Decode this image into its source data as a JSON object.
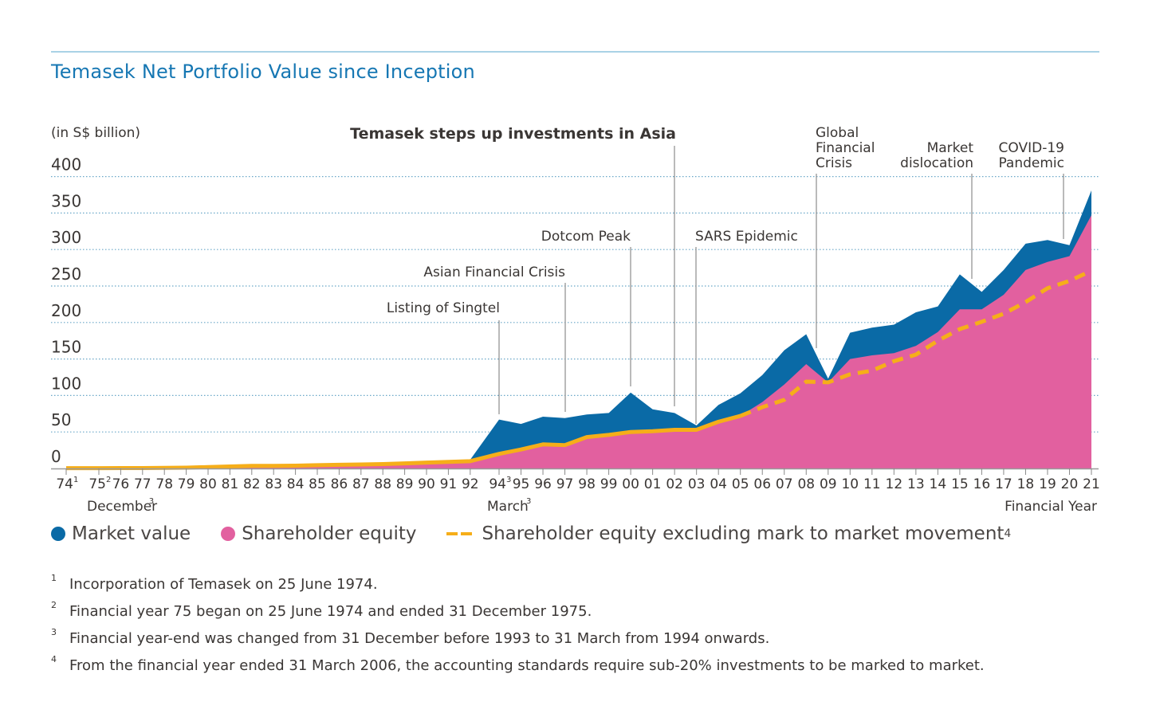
{
  "page": {
    "title": "Temasek Net Portfolio Value since Inception"
  },
  "chart_data": {
    "type": "area",
    "title": "Temasek Net Portfolio Value since Inception",
    "ylabel": "(in S$ billion)",
    "xlabel": "Financial Year",
    "ylim": [
      0,
      400
    ],
    "yticks": [
      "0",
      "50",
      "100",
      "150",
      "200",
      "250",
      "300",
      "350",
      "400"
    ],
    "grid": true,
    "legend_position": "bottom",
    "categories": [
      "74",
      "75",
      "76",
      "77",
      "78",
      "79",
      "80",
      "81",
      "82",
      "83",
      "84",
      "85",
      "86",
      "87",
      "88",
      "89",
      "90",
      "91",
      "92",
      "94",
      "95",
      "96",
      "97",
      "98",
      "99",
      "00",
      "01",
      "02",
      "03",
      "04",
      "05",
      "06",
      "07",
      "08",
      "09",
      "10",
      "11",
      "12",
      "13",
      "14",
      "15",
      "16",
      "17",
      "18",
      "19",
      "20",
      "21"
    ],
    "tick_superscripts": {
      "74": "1",
      "75": "2",
      "94": "3"
    },
    "period_labels": [
      {
        "text": "December",
        "sup": "3",
        "at": "75"
      },
      {
        "text": "March",
        "sup": "3",
        "at": "94"
      }
    ],
    "series": [
      {
        "name": "Market value",
        "color": "#0a6aa6",
        "values": [
          0.35,
          0.4,
          0.5,
          0.6,
          0.8,
          1.1,
          1.9,
          2.7,
          3.6,
          3.5,
          3.8,
          4.5,
          5,
          6.5,
          7,
          9,
          10,
          11,
          12,
          67,
          61,
          71,
          69,
          74,
          76,
          104,
          81,
          76,
          59,
          87,
          103,
          128,
          162,
          184,
          123,
          186,
          193,
          197,
          214,
          222,
          266,
          242,
          272,
          308,
          313,
          306,
          381
        ]
      },
      {
        "name": "Shareholder equity",
        "color": "#e2609f",
        "values": [
          0.35,
          0.4,
          0.5,
          0.6,
          0.8,
          1.1,
          1.9,
          2.7,
          3.6,
          3.5,
          3.8,
          4.5,
          5,
          5.5,
          6,
          7,
          8,
          9,
          10,
          20,
          26,
          33,
          32,
          43,
          46,
          50,
          51,
          53,
          53,
          64,
          72,
          91,
          115,
          143,
          118,
          150,
          155,
          158,
          168,
          187,
          218,
          218,
          238,
          272,
          283,
          291,
          347
        ]
      },
      {
        "name": "Shareholder equity excluding mark to market movement",
        "sup": "4",
        "color": "#f6ae19",
        "style": "dashed",
        "values": [
          0.35,
          0.4,
          0.5,
          0.6,
          0.8,
          1.1,
          1.9,
          2.7,
          3.6,
          3.5,
          3.8,
          4.5,
          5,
          5.5,
          6,
          7,
          8,
          9,
          10,
          20,
          26,
          33,
          32,
          43,
          46,
          50,
          51,
          53,
          53,
          64,
          72,
          84,
          94,
          119,
          118,
          129,
          134,
          147,
          156,
          175,
          191,
          201,
          212,
          228,
          247,
          257,
          271
        ]
      }
    ],
    "annotations": [
      {
        "text": "Temasek steps up investments in Asia",
        "at": "02",
        "bold": true
      },
      {
        "text": "Listing of Singtel",
        "at": "94"
      },
      {
        "text": "Asian Financial Crisis",
        "at": "97"
      },
      {
        "text": "Dotcom Peak",
        "at": "00"
      },
      {
        "text": "SARS Epidemic",
        "at": "03"
      },
      {
        "text": "Global Financial Crisis",
        "at": "08-09"
      },
      {
        "text": "Market dislocation",
        "at": "15-16"
      },
      {
        "text": "COVID-19 Pandemic",
        "at": "19-20"
      }
    ]
  },
  "legend": {
    "items": [
      {
        "label": "Market value",
        "color": "#0a6aa6"
      },
      {
        "label": "Shareholder equity",
        "color": "#e2609f"
      },
      {
        "label": "Shareholder equity excluding mark to market movement",
        "sup": "4",
        "color": "#f6ae19"
      }
    ]
  },
  "footnotes": [
    {
      "num": "1",
      "text": "Incorporation of Temasek on 25 June 1974."
    },
    {
      "num": "2",
      "text": "Financial year 75 began on 25 June 1974 and ended 31 December 1975."
    },
    {
      "num": "3",
      "text": "Financial year-end was changed from 31 December before 1993 to 31 March from 1994 onwards."
    },
    {
      "num": "4",
      "text": "From the financial year ended 31 March 2006, the accounting standards require sub-20% investments to be marked to market."
    }
  ]
}
